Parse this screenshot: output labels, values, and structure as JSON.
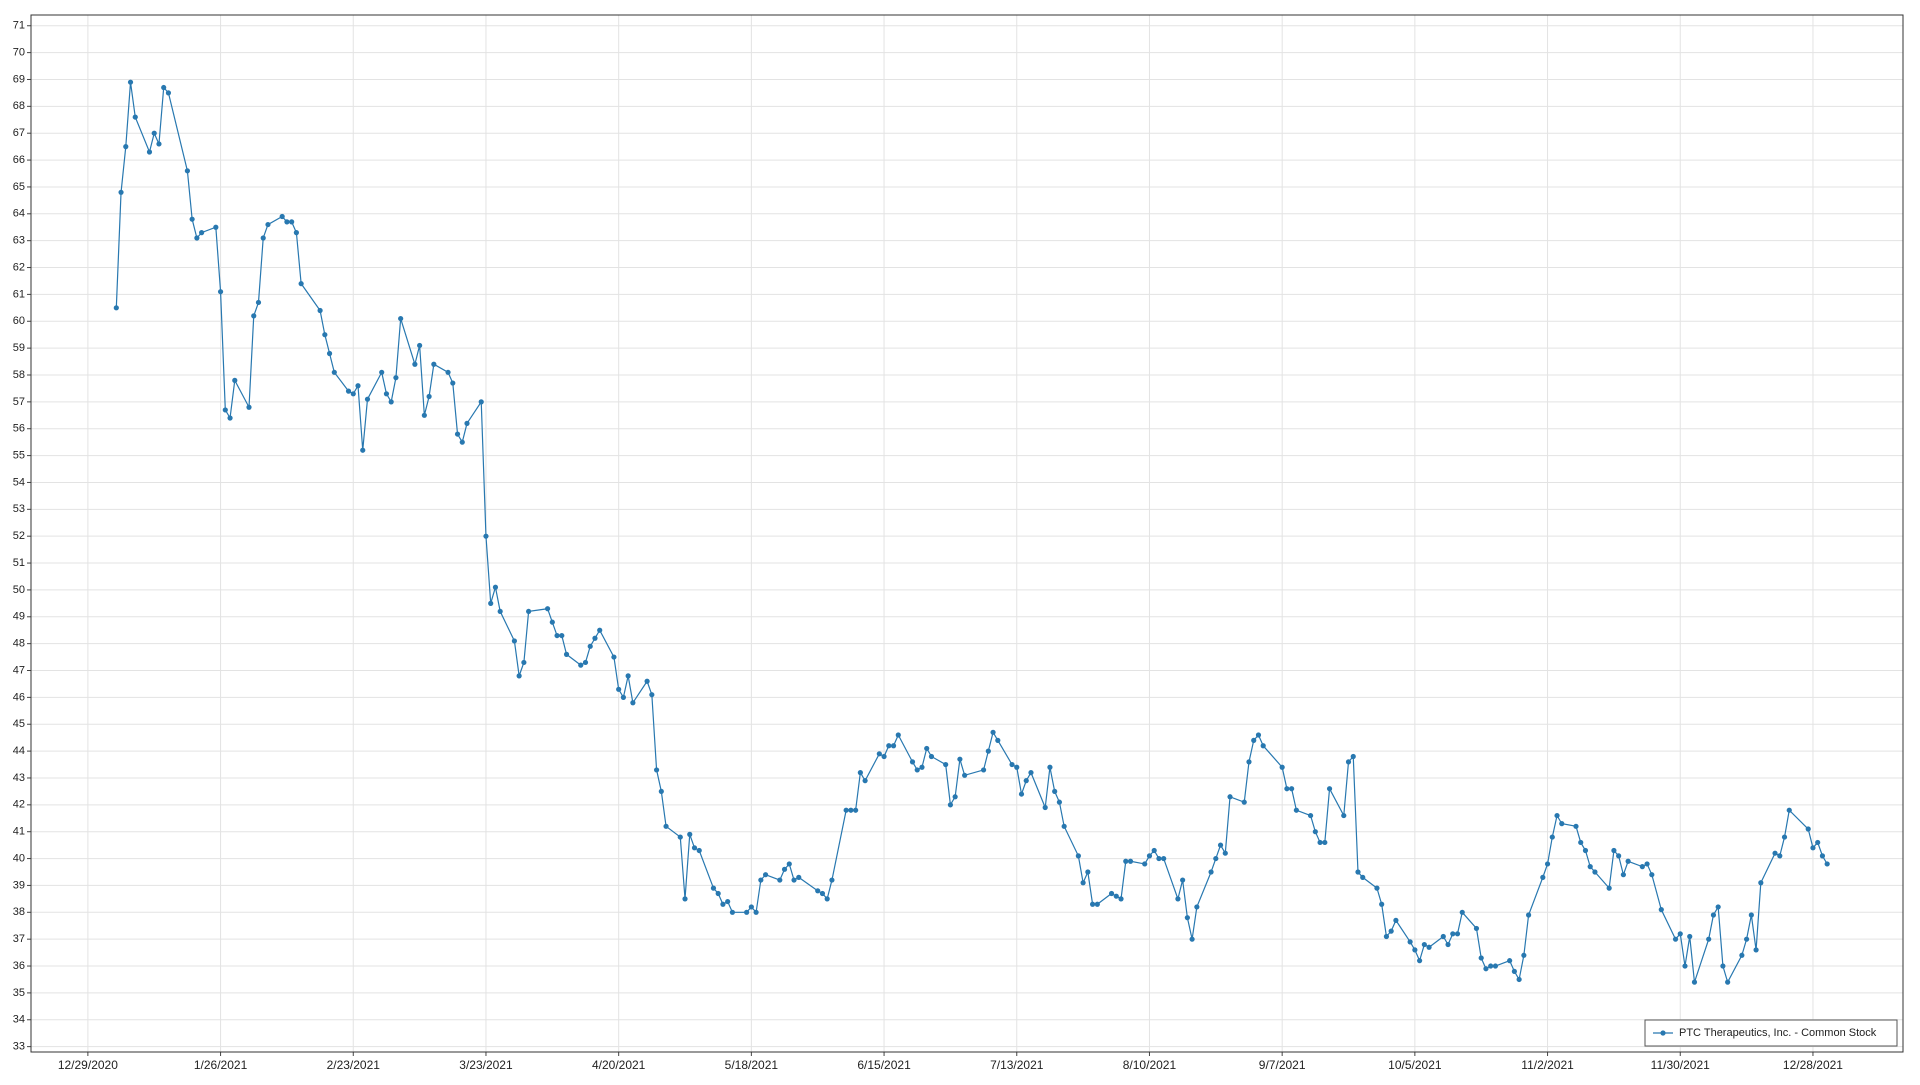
{
  "chart_data": {
    "type": "line",
    "x": [
      "1/4/2021",
      "1/5/2021",
      "1/6/2021",
      "1/7/2021",
      "1/8/2021",
      "1/11/2021",
      "1/12/2021",
      "1/13/2021",
      "1/14/2021",
      "1/15/2021",
      "1/19/2021",
      "1/20/2021",
      "1/21/2021",
      "1/22/2021",
      "1/25/2021",
      "1/26/2021",
      "1/27/2021",
      "1/28/2021",
      "1/29/2021",
      "2/1/2021",
      "2/2/2021",
      "2/3/2021",
      "2/4/2021",
      "2/5/2021",
      "2/8/2021",
      "2/9/2021",
      "2/10/2021",
      "2/11/2021",
      "2/12/2021",
      "2/16/2021",
      "2/17/2021",
      "2/18/2021",
      "2/19/2021",
      "2/22/2021",
      "2/23/2021",
      "2/24/2021",
      "2/25/2021",
      "2/26/2021",
      "3/1/2021",
      "3/2/2021",
      "3/3/2021",
      "3/4/2021",
      "3/5/2021",
      "3/8/2021",
      "3/9/2021",
      "3/10/2021",
      "3/11/2021",
      "3/12/2021",
      "3/15/2021",
      "3/16/2021",
      "3/17/2021",
      "3/18/2021",
      "3/19/2021",
      "3/22/2021",
      "3/23/2021",
      "3/24/2021",
      "3/25/2021",
      "3/26/2021",
      "3/29/2021",
      "3/30/2021",
      "3/31/2021",
      "4/1/2021",
      "4/5/2021",
      "4/6/2021",
      "4/7/2021",
      "4/8/2021",
      "4/9/2021",
      "4/12/2021",
      "4/13/2021",
      "4/14/2021",
      "4/15/2021",
      "4/16/2021",
      "4/19/2021",
      "4/20/2021",
      "4/21/2021",
      "4/22/2021",
      "4/23/2021",
      "4/26/2021",
      "4/27/2021",
      "4/28/2021",
      "4/29/2021",
      "4/30/2021",
      "5/3/2021",
      "5/4/2021",
      "5/5/2021",
      "5/6/2021",
      "5/7/2021",
      "5/10/2021",
      "5/11/2021",
      "5/12/2021",
      "5/13/2021",
      "5/14/2021",
      "5/17/2021",
      "5/18/2021",
      "5/19/2021",
      "5/20/2021",
      "5/21/2021",
      "5/24/2021",
      "5/25/2021",
      "5/26/2021",
      "5/27/2021",
      "5/28/2021",
      "6/1/2021",
      "6/2/2021",
      "6/3/2021",
      "6/4/2021",
      "6/7/2021",
      "6/8/2021",
      "6/9/2021",
      "6/10/2021",
      "6/11/2021",
      "6/14/2021",
      "6/15/2021",
      "6/16/2021",
      "6/17/2021",
      "6/18/2021",
      "6/21/2021",
      "6/22/2021",
      "6/23/2021",
      "6/24/2021",
      "6/25/2021",
      "6/28/2021",
      "6/29/2021",
      "6/30/2021",
      "7/1/2021",
      "7/2/2021",
      "7/6/2021",
      "7/7/2021",
      "7/8/2021",
      "7/9/2021",
      "7/12/2021",
      "7/13/2021",
      "7/14/2021",
      "7/15/2021",
      "7/16/2021",
      "7/19/2021",
      "7/20/2021",
      "7/21/2021",
      "7/22/2021",
      "7/23/2021",
      "7/26/2021",
      "7/27/2021",
      "7/28/2021",
      "7/29/2021",
      "7/30/2021",
      "8/2/2021",
      "8/3/2021",
      "8/4/2021",
      "8/5/2021",
      "8/6/2021",
      "8/9/2021",
      "8/10/2021",
      "8/11/2021",
      "8/12/2021",
      "8/13/2021",
      "8/16/2021",
      "8/17/2021",
      "8/18/2021",
      "8/19/2021",
      "8/20/2021",
      "8/23/2021",
      "8/24/2021",
      "8/25/2021",
      "8/26/2021",
      "8/27/2021",
      "8/30/2021",
      "8/31/2021",
      "9/1/2021",
      "9/2/2021",
      "9/3/2021",
      "9/7/2021",
      "9/8/2021",
      "9/9/2021",
      "9/10/2021",
      "9/13/2021",
      "9/14/2021",
      "9/15/2021",
      "9/16/2021",
      "9/17/2021",
      "9/20/2021",
      "9/21/2021",
      "9/22/2021",
      "9/23/2021",
      "9/24/2021",
      "9/27/2021",
      "9/28/2021",
      "9/29/2021",
      "9/30/2021",
      "10/1/2021",
      "10/4/2021",
      "10/5/2021",
      "10/6/2021",
      "10/7/2021",
      "10/8/2021",
      "10/11/2021",
      "10/12/2021",
      "10/13/2021",
      "10/14/2021",
      "10/15/2021",
      "10/18/2021",
      "10/19/2021",
      "10/20/2021",
      "10/21/2021",
      "10/22/2021",
      "10/25/2021",
      "10/26/2021",
      "10/27/2021",
      "10/28/2021",
      "10/29/2021",
      "11/1/2021",
      "11/2/2021",
      "11/3/2021",
      "11/4/2021",
      "11/5/2021",
      "11/8/2021",
      "11/9/2021",
      "11/10/2021",
      "11/11/2021",
      "11/12/2021",
      "11/15/2021",
      "11/16/2021",
      "11/17/2021",
      "11/18/2021",
      "11/19/2021",
      "11/22/2021",
      "11/23/2021",
      "11/24/2021",
      "11/26/2021",
      "11/29/2021",
      "11/30/2021",
      "12/1/2021",
      "12/2/2021",
      "12/3/2021",
      "12/6/2021",
      "12/7/2021",
      "12/8/2021",
      "12/9/2021",
      "12/10/2021",
      "12/13/2021",
      "12/14/2021",
      "12/15/2021",
      "12/16/2021",
      "12/17/2021",
      "12/20/2021",
      "12/21/2021",
      "12/22/2021",
      "12/23/2021",
      "12/27/2021",
      "12/28/2021",
      "12/29/2021",
      "12/30/2021",
      "12/31/2021"
    ],
    "series": [
      {
        "name": "PTC Therapeutics, Inc. - Common Stock",
        "color": "#2878b0",
        "values": [
          60.5,
          64.8,
          66.5,
          68.9,
          67.6,
          66.3,
          67.0,
          66.6,
          68.7,
          68.5,
          65.6,
          63.8,
          63.1,
          63.3,
          63.5,
          61.1,
          56.7,
          56.4,
          57.8,
          56.8,
          60.2,
          60.7,
          63.1,
          63.6,
          63.9,
          63.7,
          63.7,
          63.3,
          61.4,
          60.4,
          59.5,
          58.8,
          58.1,
          57.4,
          57.3,
          57.6,
          55.2,
          57.1,
          58.1,
          57.3,
          57.0,
          57.9,
          60.1,
          58.4,
          59.1,
          56.5,
          57.2,
          58.4,
          58.1,
          57.7,
          55.8,
          55.5,
          56.2,
          57.0,
          52.0,
          49.5,
          50.1,
          49.2,
          48.1,
          46.8,
          47.3,
          49.2,
          49.3,
          48.8,
          48.3,
          48.3,
          47.6,
          47.2,
          47.3,
          47.9,
          48.2,
          48.5,
          47.5,
          46.3,
          46.0,
          46.8,
          45.8,
          46.6,
          46.1,
          43.3,
          42.5,
          41.2,
          40.8,
          38.5,
          40.9,
          40.4,
          40.3,
          38.9,
          38.7,
          38.3,
          38.4,
          38.0,
          38.0,
          38.2,
          38.0,
          39.2,
          39.4,
          39.2,
          39.6,
          39.8,
          39.2,
          39.3,
          38.8,
          38.7,
          38.5,
          39.2,
          41.8,
          41.8,
          41.8,
          43.2,
          42.9,
          43.9,
          43.8,
          44.2,
          44.2,
          44.6,
          43.6,
          43.3,
          43.4,
          44.1,
          43.8,
          43.5,
          42.0,
          42.3,
          43.7,
          43.1,
          43.3,
          44.0,
          44.7,
          44.4,
          43.5,
          43.4,
          42.4,
          42.9,
          43.2,
          41.9,
          43.4,
          42.5,
          42.1,
          41.2,
          40.1,
          39.1,
          39.5,
          38.3,
          38.3,
          38.7,
          38.6,
          38.5,
          39.9,
          39.9,
          39.8,
          40.1,
          40.3,
          40.0,
          40.0,
          38.5,
          39.2,
          37.8,
          37.0,
          38.2,
          39.5,
          40.0,
          40.5,
          40.2,
          42.3,
          42.1,
          43.6,
          44.4,
          44.6,
          44.2,
          43.4,
          42.6,
          42.6,
          41.8,
          41.6,
          41.0,
          40.6,
          40.6,
          42.6,
          41.6,
          43.6,
          43.8,
          39.5,
          39.3,
          38.9,
          38.3,
          37.1,
          37.3,
          37.7,
          36.9,
          36.6,
          36.2,
          36.8,
          36.7,
          37.1,
          36.8,
          37.2,
          37.2,
          38.0,
          37.4,
          36.3,
          35.9,
          36.0,
          36.0,
          36.2,
          35.8,
          35.5,
          36.4,
          37.9,
          39.3,
          39.8,
          40.8,
          41.6,
          41.3,
          41.2,
          40.6,
          40.3,
          39.7,
          39.5,
          38.9,
          40.3,
          40.1,
          39.4,
          39.9,
          39.7,
          39.8,
          39.4,
          38.1,
          37.0,
          37.2,
          36.0,
          37.1,
          35.4,
          37.0,
          37.9,
          38.2,
          36.0,
          35.4,
          36.4,
          37.0,
          37.9,
          36.6,
          39.1,
          40.2,
          40.1,
          40.8,
          41.8,
          41.1,
          40.4,
          40.6,
          40.1,
          39.8
        ]
      }
    ],
    "xlim": [
      "12/17/2020",
      "1/16/2022"
    ],
    "xticks": [
      "12/29/2020",
      "1/26/2021",
      "2/23/2021",
      "3/23/2021",
      "4/20/2021",
      "5/18/2021",
      "6/15/2021",
      "7/13/2021",
      "8/10/2021",
      "9/7/2021",
      "10/5/2021",
      "11/2/2021",
      "11/30/2021",
      "12/28/2021"
    ],
    "ylim": [
      32.8,
      71.4
    ],
    "yticks": [
      33,
      34,
      35,
      36,
      37,
      38,
      39,
      40,
      41,
      42,
      43,
      44,
      45,
      46,
      47,
      48,
      49,
      50,
      51,
      52,
      53,
      54,
      55,
      56,
      57,
      58,
      59,
      60,
      61,
      62,
      63,
      64,
      65,
      66,
      67,
      68,
      69,
      70,
      71
    ],
    "grid": true,
    "legend": "lower right"
  }
}
